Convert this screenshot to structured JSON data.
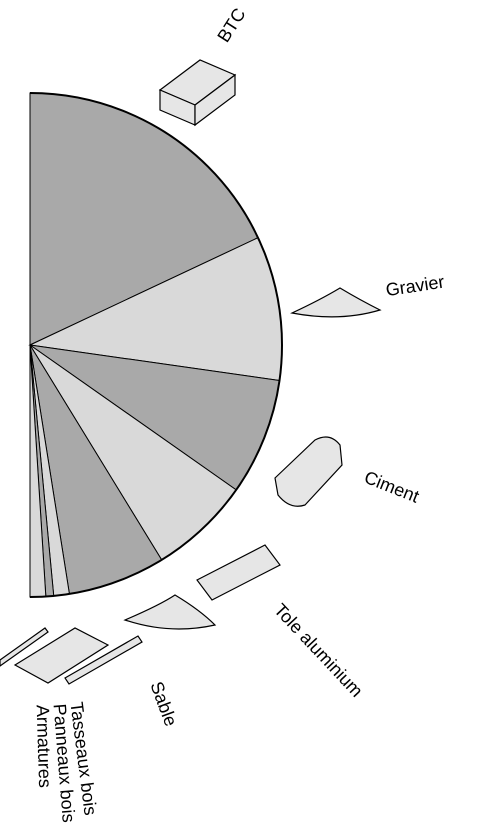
{
  "chart_data": {
    "type": "half-pie",
    "categories": [
      "BTC",
      "Gravier",
      "Ciment",
      "Tole aluminium",
      "Sable",
      "Tasseaux bois",
      "Panneaux bois",
      "Armatures"
    ],
    "values": [
      36,
      18.5,
      15,
      13,
      12.5,
      2,
      1,
      2
    ],
    "colors": [
      "#a9a9a9",
      "#d9d9d9",
      "#a9a9a9",
      "#d9d9d9",
      "#a9a9a9",
      "#d9d9d9",
      "#a9a9a9",
      "#d9d9d9"
    ]
  }
}
